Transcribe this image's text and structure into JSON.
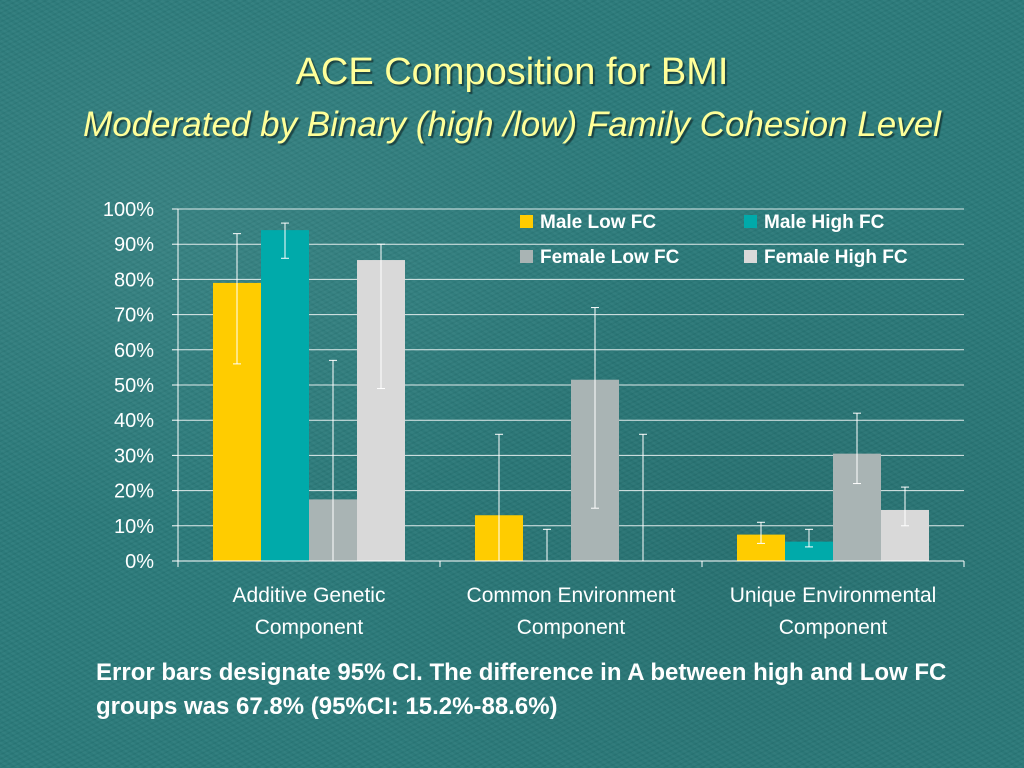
{
  "slide": {
    "title": "ACE Composition for BMI",
    "subtitle": "Moderated by Binary (high /low) Family Cohesion Level",
    "note": "Error bars designate 95% CI.  The difference in A between high and Low FC groups was 67.8% (95%CI: 15.2%-88.6%)"
  },
  "chart_data": {
    "type": "bar",
    "title": "",
    "xlabel": "",
    "ylabel": "",
    "ylim": [
      0,
      100
    ],
    "yticks": [
      0,
      10,
      20,
      30,
      40,
      50,
      60,
      70,
      80,
      90,
      100
    ],
    "ytick_labels": [
      "0%",
      "10%",
      "20%",
      "30%",
      "40%",
      "50%",
      "60%",
      "70%",
      "80%",
      "90%",
      "100%"
    ],
    "grid": true,
    "legend_position": "top-right",
    "categories": [
      [
        "Additive Genetic",
        "Component"
      ],
      [
        "Common Environment",
        "Component"
      ],
      [
        "Unique Environmental",
        "Component"
      ]
    ],
    "series": [
      {
        "name": "Male Low FC",
        "color": "#ffcc00",
        "values": [
          79,
          13,
          7.5
        ],
        "ci_low": [
          56,
          0,
          5
        ],
        "ci_high": [
          93,
          36,
          11
        ]
      },
      {
        "name": "Male High FC",
        "color": "#00aaaa",
        "values": [
          94,
          0,
          5.5
        ],
        "ci_low": [
          86,
          0,
          4
        ],
        "ci_high": [
          96,
          9,
          9
        ]
      },
      {
        "name": "Female Low FC",
        "color": "#a9b4b4",
        "values": [
          17.5,
          51.5,
          30.5
        ],
        "ci_low": [
          0,
          15,
          22
        ],
        "ci_high": [
          57,
          72,
          42
        ]
      },
      {
        "name": "Female High FC",
        "color": "#d9d9d9",
        "values": [
          85.5,
          0,
          14.5
        ],
        "ci_low": [
          49,
          0,
          10
        ],
        "ci_high": [
          90,
          36,
          21
        ]
      }
    ]
  }
}
